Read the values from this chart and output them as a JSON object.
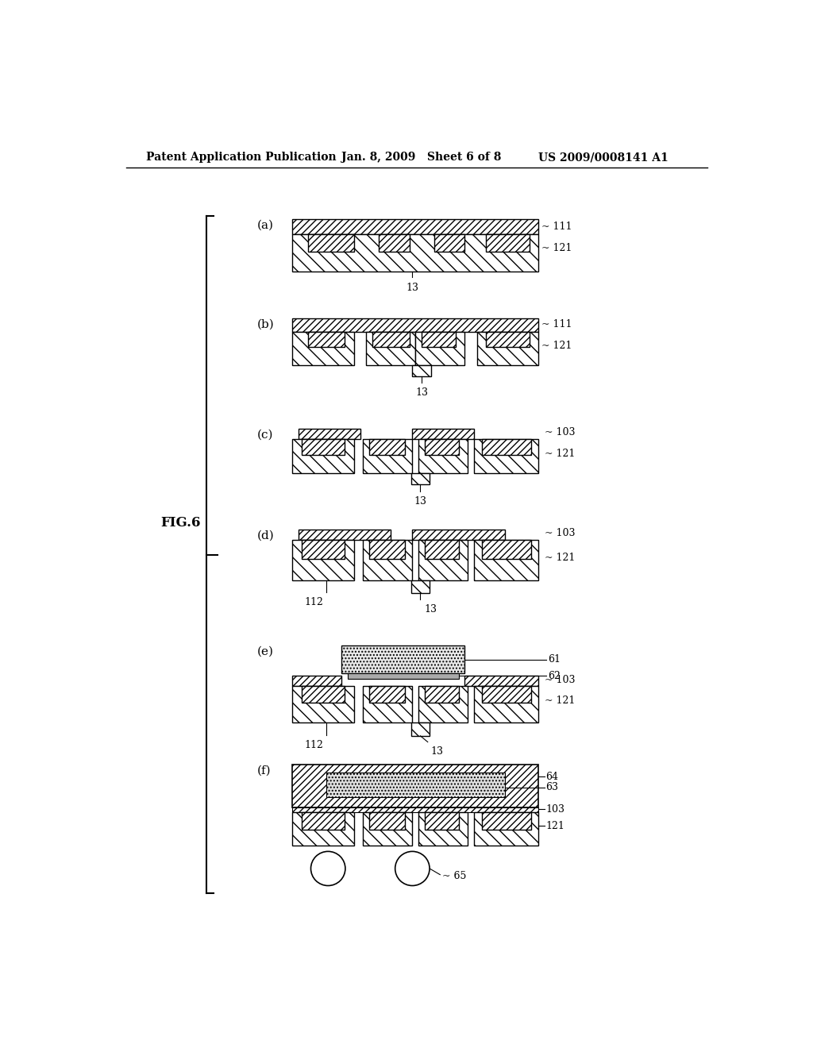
{
  "title_left": "Patent Application Publication",
  "title_mid": "Jan. 8, 2009   Sheet 6 of 8",
  "title_right": "US 2009/0008141 A1",
  "fig_label": "FIG.6",
  "background_color": "#ffffff"
}
